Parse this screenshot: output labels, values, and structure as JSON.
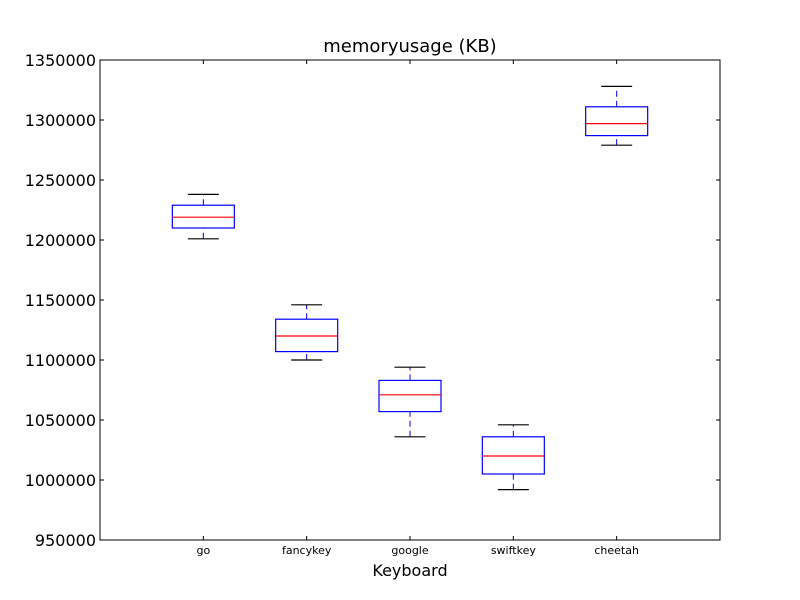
{
  "chart_data": {
    "type": "box",
    "title": "memoryusage (KB)",
    "xlabel": "Keyboard",
    "ylabel": "",
    "ylim": [
      950000,
      1350000
    ],
    "yticks": [
      950000,
      1000000,
      1050000,
      1100000,
      1150000,
      1200000,
      1250000,
      1300000,
      1350000
    ],
    "categories": [
      "go",
      "fancykey",
      "google",
      "swiftkey",
      "cheetah"
    ],
    "boxes": [
      {
        "whisker_low": 1201000,
        "q1": 1210000,
        "median": 1219000,
        "q3": 1229000,
        "whisker_high": 1238000
      },
      {
        "whisker_low": 1100000,
        "q1": 1107000,
        "median": 1120000,
        "q3": 1134000,
        "whisker_high": 1146000
      },
      {
        "whisker_low": 1036000,
        "q1": 1057000,
        "median": 1071000,
        "q3": 1083000,
        "whisker_high": 1094000
      },
      {
        "whisker_low": 992000,
        "q1": 1005000,
        "median": 1020000,
        "q3": 1036000,
        "whisker_high": 1046000
      },
      {
        "whisker_low": 1279000,
        "q1": 1287000,
        "median": 1297000,
        "q3": 1311000,
        "whisker_high": 1328000
      }
    ],
    "grid": false,
    "colors": {
      "box": "#0000ff",
      "median": "#ff0000",
      "cap": "#000000",
      "axes": "#000000"
    }
  }
}
